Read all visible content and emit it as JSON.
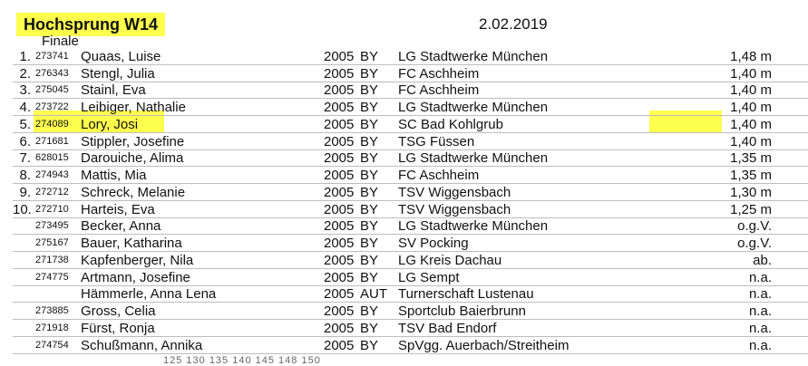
{
  "header": {
    "title": "Hochsprung W14",
    "date": "2.02.2019",
    "round": "Finale"
  },
  "highlight_color": "#ffff4d",
  "results": [
    {
      "rank": "1.",
      "id": "273741",
      "name": "Quaas, Luise",
      "year": "2005",
      "state": "BY",
      "club": "LG Stadtwerke München",
      "perf": "1,48 m"
    },
    {
      "rank": "2.",
      "id": "276343",
      "name": "Stengl, Julia",
      "year": "2005",
      "state": "BY",
      "club": "FC Aschheim",
      "perf": "1,40 m"
    },
    {
      "rank": "3.",
      "id": "275045",
      "name": "Stainl, Eva",
      "year": "2005",
      "state": "BY",
      "club": "FC Aschheim",
      "perf": "1,40 m"
    },
    {
      "rank": "4.",
      "id": "273722",
      "name": "Leibiger, Nathalie",
      "year": "2005",
      "state": "BY",
      "club": "LG Stadtwerke München",
      "perf": "1,40 m"
    },
    {
      "rank": "5.",
      "id": "274089",
      "name": "Lory, Josi",
      "year": "2005",
      "state": "BY",
      "club": "SC Bad Kohlgrub",
      "perf": "1,40 m"
    },
    {
      "rank": "6.",
      "id": "271681",
      "name": "Stippler, Josefine",
      "year": "2005",
      "state": "BY",
      "club": "TSG Füssen",
      "perf": "1,40 m"
    },
    {
      "rank": "7.",
      "id": "628015",
      "name": "Darouiche, Alima",
      "year": "2005",
      "state": "BY",
      "club": "LG Stadtwerke München",
      "perf": "1,35 m"
    },
    {
      "rank": "8.",
      "id": "274943",
      "name": "Mattis, Mia",
      "year": "2005",
      "state": "BY",
      "club": "FC Aschheim",
      "perf": "1,35 m"
    },
    {
      "rank": "9.",
      "id": "272712",
      "name": "Schreck, Melanie",
      "year": "2005",
      "state": "BY",
      "club": "TSV Wiggensbach",
      "perf": "1,30 m"
    },
    {
      "rank": "10.",
      "id": "272710",
      "name": "Harteis, Eva",
      "year": "2005",
      "state": "BY",
      "club": "TSV Wiggensbach",
      "perf": "1,25 m"
    },
    {
      "rank": "",
      "id": "273495",
      "name": "Becker, Anna",
      "year": "2005",
      "state": "BY",
      "club": "LG Stadtwerke München",
      "perf": "o.g.V."
    },
    {
      "rank": "",
      "id": "275167",
      "name": "Bauer, Katharina",
      "year": "2005",
      "state": "BY",
      "club": "SV Pocking",
      "perf": "o.g.V."
    },
    {
      "rank": "",
      "id": "271738",
      "name": "Kapfenberger, Nila",
      "year": "2005",
      "state": "BY",
      "club": "LG Kreis Dachau",
      "perf": "ab."
    },
    {
      "rank": "",
      "id": "274775",
      "name": "Artmann, Josefine",
      "year": "2005",
      "state": "BY",
      "club": "LG Sempt",
      "perf": "n.a."
    },
    {
      "rank": "",
      "id": "",
      "name": "Hämmerle, Anna Lena",
      "year": "2005",
      "state": "AUT",
      "club": "Turnerschaft Lustenau",
      "perf": "n.a."
    },
    {
      "rank": "",
      "id": "273885",
      "name": "Gross, Celia",
      "year": "2005",
      "state": "BY",
      "club": "Sportclub Baierbrunn",
      "perf": "n.a."
    },
    {
      "rank": "",
      "id": "271918",
      "name": "Fürst, Ronja",
      "year": "2005",
      "state": "BY",
      "club": "TSV Bad Endorf",
      "perf": "n.a."
    },
    {
      "rank": "",
      "id": "274754",
      "name": "Schußmann, Annika",
      "year": "2005",
      "state": "BY",
      "club": "SpVgg. Auerbach/Streitheim",
      "perf": "n.a."
    }
  ],
  "partial_line": "125 130 135 140 145 148 150"
}
